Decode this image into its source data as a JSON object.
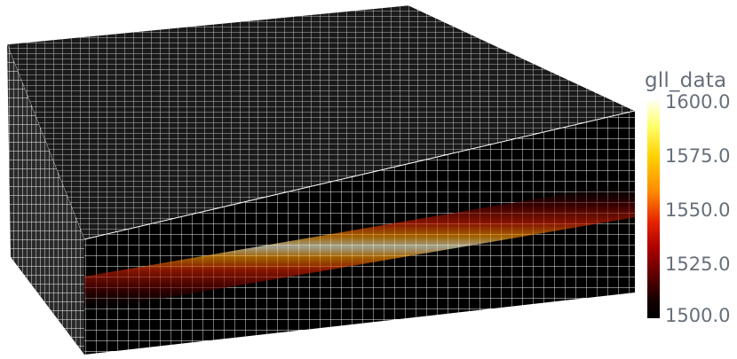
{
  "viewport": {
    "grid_color": "#ffffff",
    "background_color": "#ffffff",
    "field_colors": [
      "#000000",
      "#8b0000",
      "#e62200",
      "#ff8a00",
      "#ffd100",
      "#fffff2"
    ]
  },
  "colorbar": {
    "title": "gll_data",
    "range": [
      1500.0,
      1600.0
    ],
    "ticks": [
      "1600.0",
      "1575.0",
      "1550.0",
      "1525.0",
      "1500.0"
    ],
    "colormap": "black-body radiation"
  }
}
